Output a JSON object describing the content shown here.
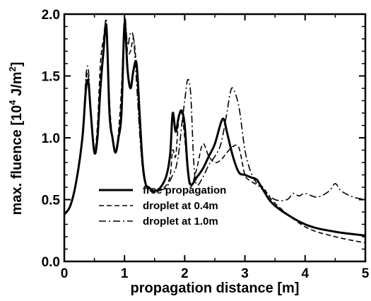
{
  "chart_data": {
    "type": "line",
    "title": "",
    "xlabel": "propagation distance [m]",
    "ylabel": {
      "prefix": "max. fluence [10",
      "exp1": "4",
      "mid": " J/m",
      "exp2": "2",
      "suffix": "]"
    },
    "xlim": [
      0,
      5
    ],
    "ylim": [
      0,
      2
    ],
    "xticks": [
      "0",
      "1",
      "2",
      "3",
      "4",
      "5"
    ],
    "yticks": [
      "0.0",
      "0.5",
      "1.0",
      "1.5",
      "2.0"
    ],
    "grid": false,
    "legend_position": "lower-left",
    "series": [
      {
        "name": "free propagation",
        "style": "solid",
        "color": "#000000",
        "x": [
          0,
          0.1,
          0.2,
          0.3,
          0.36,
          0.4,
          0.44,
          0.5,
          0.55,
          0.6,
          0.65,
          0.7,
          0.75,
          0.8,
          0.85,
          0.9,
          0.95,
          1.0,
          1.05,
          1.1,
          1.15,
          1.2,
          1.25,
          1.3,
          1.35,
          1.4,
          1.5,
          1.6,
          1.7,
          1.76,
          1.8,
          1.85,
          1.9,
          1.95,
          2.0,
          2.05,
          2.1,
          2.2,
          2.3,
          2.4,
          2.5,
          2.6,
          2.65,
          2.7,
          2.8,
          2.9,
          3.0,
          3.1,
          3.2,
          3.3,
          3.5,
          4.0,
          4.5,
          5.0
        ],
        "y": [
          0.38,
          0.45,
          0.65,
          1.0,
          1.4,
          1.45,
          1.2,
          0.88,
          1.0,
          1.4,
          1.7,
          1.9,
          1.2,
          1.0,
          0.88,
          1.0,
          1.2,
          1.92,
          1.55,
          1.4,
          1.55,
          1.6,
          1.2,
          0.8,
          0.63,
          0.6,
          0.57,
          0.6,
          0.7,
          0.88,
          1.2,
          1.05,
          1.17,
          1.22,
          1.1,
          0.75,
          0.62,
          0.68,
          0.75,
          0.85,
          0.95,
          1.12,
          1.15,
          1.05,
          0.85,
          0.72,
          0.7,
          0.68,
          0.66,
          0.58,
          0.45,
          0.3,
          0.24,
          0.21
        ]
      },
      {
        "name": "droplet at  0.4m",
        "style": "dashed",
        "color": "#000000",
        "x": [
          0,
          0.1,
          0.2,
          0.3,
          0.36,
          0.4,
          0.44,
          0.5,
          0.55,
          0.6,
          0.65,
          0.7,
          0.75,
          0.8,
          0.85,
          0.9,
          0.95,
          1.0,
          1.05,
          1.1,
          1.15,
          1.2,
          1.25,
          1.3,
          1.35,
          1.4,
          1.5,
          1.6,
          1.7,
          1.76,
          1.8,
          1.85,
          1.9,
          1.95,
          2.0,
          2.05,
          2.1,
          2.2,
          2.3,
          2.4,
          2.5,
          2.6,
          2.7,
          2.8,
          2.9,
          3.0,
          3.1,
          3.2,
          3.3,
          3.5,
          4.0,
          4.5,
          5.0
        ],
        "y": [
          0.38,
          0.45,
          0.65,
          1.0,
          1.45,
          1.5,
          1.2,
          0.9,
          1.1,
          1.6,
          1.8,
          1.9,
          1.3,
          1.0,
          0.9,
          1.05,
          1.4,
          1.95,
          1.7,
          1.7,
          1.8,
          1.55,
          1.1,
          0.75,
          0.62,
          0.58,
          0.56,
          0.58,
          0.62,
          0.7,
          0.9,
          0.85,
          1.15,
          1.2,
          1.0,
          0.72,
          0.6,
          0.75,
          0.95,
          0.85,
          0.8,
          0.82,
          0.88,
          0.93,
          0.92,
          0.7,
          0.65,
          0.62,
          0.6,
          0.47,
          0.28,
          0.2,
          0.15
        ]
      },
      {
        "name": "droplet at 1.0m",
        "style": "dashdot",
        "color": "#000000",
        "x": [
          0,
          0.1,
          0.2,
          0.3,
          0.36,
          0.4,
          0.44,
          0.5,
          0.55,
          0.6,
          0.65,
          0.7,
          0.75,
          0.8,
          0.85,
          0.9,
          0.95,
          1.0,
          1.05,
          1.1,
          1.15,
          1.2,
          1.25,
          1.3,
          1.35,
          1.4,
          1.5,
          1.6,
          1.7,
          1.8,
          1.85,
          1.9,
          1.95,
          2.0,
          2.05,
          2.1,
          2.15,
          2.2,
          2.3,
          2.4,
          2.5,
          2.6,
          2.7,
          2.75,
          2.8,
          2.9,
          3.0,
          3.1,
          3.2,
          3.3,
          3.5,
          3.7,
          3.8,
          3.9,
          4.0,
          4.2,
          4.4,
          4.5,
          4.6,
          4.8,
          5.0
        ],
        "y": [
          0.38,
          0.45,
          0.65,
          1.0,
          1.5,
          1.55,
          1.2,
          0.88,
          1.0,
          1.4,
          1.7,
          1.95,
          1.25,
          1.0,
          0.88,
          1.0,
          1.3,
          1.97,
          1.75,
          1.85,
          1.8,
          1.45,
          1.05,
          0.75,
          0.62,
          0.6,
          0.57,
          0.58,
          0.6,
          0.7,
          0.75,
          0.88,
          1.1,
          1.3,
          1.47,
          1.35,
          0.8,
          0.62,
          0.68,
          0.78,
          0.85,
          0.95,
          1.2,
          1.35,
          1.4,
          1.25,
          0.9,
          0.72,
          0.63,
          0.58,
          0.5,
          0.5,
          0.55,
          0.53,
          0.55,
          0.52,
          0.57,
          0.63,
          0.57,
          0.52,
          0.5
        ]
      }
    ]
  }
}
